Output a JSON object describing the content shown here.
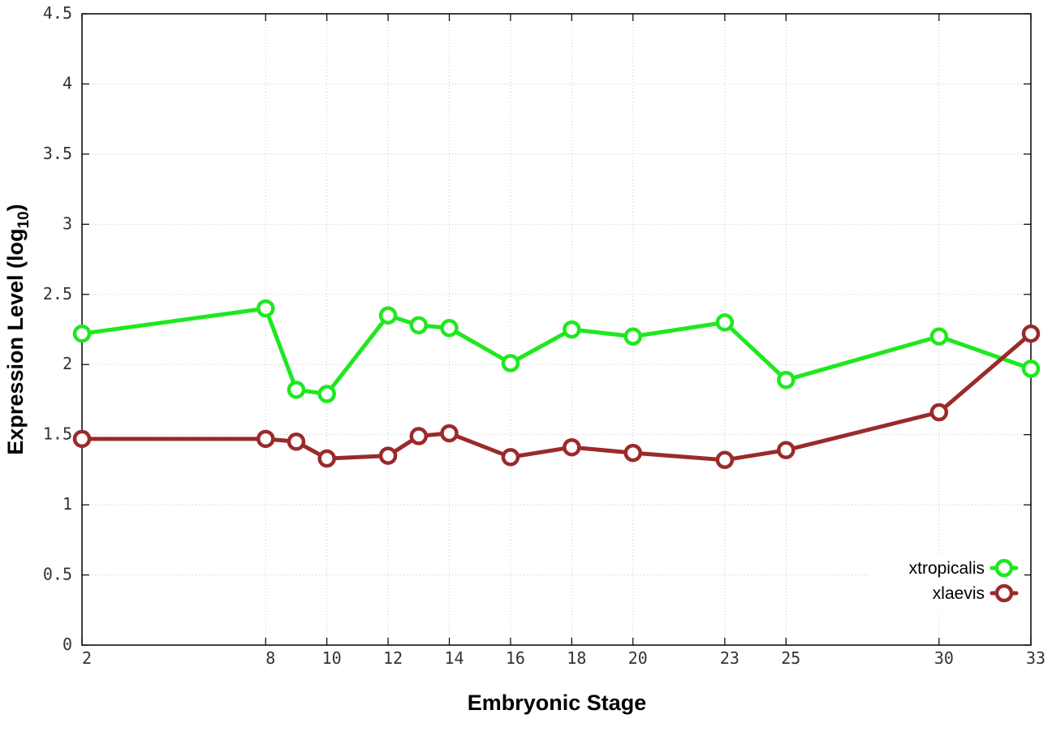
{
  "chart_data": {
    "type": "line",
    "x_ticks": [
      2,
      8,
      10,
      12,
      14,
      16,
      18,
      20,
      23,
      25,
      30,
      33
    ],
    "y_ticks": [
      "0",
      "0.5",
      "1",
      "1.5",
      "2",
      "2.5",
      "3",
      "3.5",
      "4",
      "4.5"
    ],
    "xlabel": "Embryonic Stage",
    "ylabel_main": "Expression Level (log",
    "ylabel_sub": "10",
    "ylabel_close": ")",
    "xlim": [
      2,
      33
    ],
    "ylim": [
      0,
      4.5
    ],
    "grid": true,
    "legend_position": "bottom-right",
    "series": [
      {
        "name": "xtropicalis",
        "color": "#1ee81e",
        "x": [
          2,
          8,
          9,
          10,
          12,
          13,
          14,
          16,
          18,
          20,
          23,
          25,
          30,
          33
        ],
        "y": [
          2.22,
          2.4,
          1.82,
          1.79,
          2.35,
          2.28,
          2.26,
          2.01,
          2.25,
          2.2,
          2.3,
          1.89,
          2.2,
          1.97
        ]
      },
      {
        "name": "xlaevis",
        "color": "#9b2a2a",
        "x": [
          2,
          8,
          9,
          10,
          12,
          13,
          14,
          16,
          18,
          20,
          23,
          25,
          30,
          33
        ],
        "y": [
          1.47,
          1.47,
          1.45,
          1.33,
          1.35,
          1.49,
          1.51,
          1.34,
          1.41,
          1.37,
          1.32,
          1.39,
          1.66,
          2.22
        ]
      }
    ]
  }
}
